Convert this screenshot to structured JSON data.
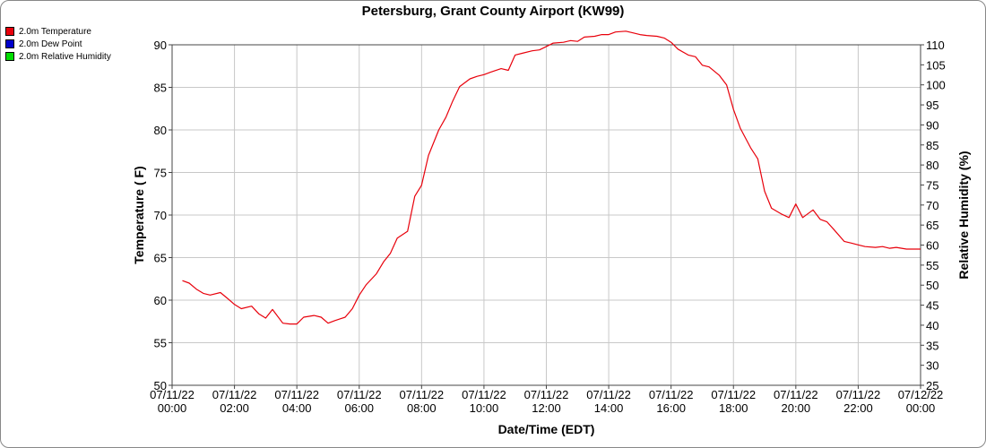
{
  "title": "Petersburg, Grant County Airport (KW99)",
  "legend": [
    {
      "label": "2.0m Temperature",
      "color": "#e8000b"
    },
    {
      "label": "2.0m Dew Point",
      "color": "#0000cc"
    },
    {
      "label": "2.0m Relative Humidity",
      "color": "#00dd00"
    }
  ],
  "chart_data": {
    "type": "line",
    "title": "Petersburg, Grant County Airport (KW99)",
    "xlabel": "Date/Time (EDT)",
    "ylabel": "Temperature ( F)",
    "y2label": "Relative Humidity (%)",
    "x_range_hours": [
      0,
      24
    ],
    "ylim": [
      50,
      90
    ],
    "y2lim": [
      25,
      110
    ],
    "yticks": [
      50,
      55,
      60,
      65,
      70,
      75,
      80,
      85,
      90
    ],
    "y2ticks": [
      25,
      30,
      35,
      40,
      45,
      50,
      55,
      60,
      65,
      70,
      75,
      80,
      85,
      90,
      95,
      100,
      105,
      110
    ],
    "xticks": [
      {
        "hour": 0,
        "date": "07/11/22",
        "time": "00:00"
      },
      {
        "hour": 2,
        "date": "07/11/22",
        "time": "02:00"
      },
      {
        "hour": 4,
        "date": "07/11/22",
        "time": "04:00"
      },
      {
        "hour": 6,
        "date": "07/11/22",
        "time": "06:00"
      },
      {
        "hour": 8,
        "date": "07/11/22",
        "time": "08:00"
      },
      {
        "hour": 10,
        "date": "07/11/22",
        "time": "10:00"
      },
      {
        "hour": 12,
        "date": "07/11/22",
        "time": "12:00"
      },
      {
        "hour": 14,
        "date": "07/11/22",
        "time": "14:00"
      },
      {
        "hour": 16,
        "date": "07/11/22",
        "time": "16:00"
      },
      {
        "hour": 18,
        "date": "07/11/22",
        "time": "18:00"
      },
      {
        "hour": 20,
        "date": "07/11/22",
        "time": "20:00"
      },
      {
        "hour": 22,
        "date": "07/11/22",
        "time": "22:00"
      },
      {
        "hour": 24,
        "date": "07/12/22",
        "time": "00:00"
      }
    ],
    "grid": true,
    "legend_position": "top-left",
    "series": [
      {
        "name": "2.0m Temperature",
        "color": "#e8000b",
        "axis": "left",
        "x": [
          0.33,
          0.55,
          0.78,
          1.0,
          1.22,
          1.55,
          1.78,
          2.0,
          2.22,
          2.55,
          2.78,
          3.0,
          3.22,
          3.55,
          3.78,
          4.0,
          4.22,
          4.55,
          4.78,
          5.0,
          5.22,
          5.55,
          5.78,
          6.0,
          6.22,
          6.55,
          6.78,
          7.0,
          7.22,
          7.55,
          7.78,
          8.0,
          8.22,
          8.55,
          8.78,
          9.0,
          9.22,
          9.55,
          9.78,
          10.0,
          10.22,
          10.55,
          10.78,
          11.0,
          11.22,
          11.55,
          11.78,
          12.0,
          12.22,
          12.55,
          12.78,
          13.0,
          13.22,
          13.55,
          13.78,
          14.0,
          14.22,
          14.55,
          14.78,
          15.0,
          15.22,
          15.55,
          15.78,
          16.0,
          16.22,
          16.55,
          16.78,
          17.0,
          17.22,
          17.55,
          17.78,
          18.0,
          18.22,
          18.55,
          18.78,
          19.0,
          19.22,
          19.55,
          19.78,
          20.0,
          20.22,
          20.55,
          20.78,
          21.0,
          21.22,
          21.55,
          21.78,
          22.0,
          22.22,
          22.55,
          22.78,
          23.0,
          23.22,
          23.55,
          23.78,
          24.0
        ],
        "values": [
          62.3,
          62.0,
          61.3,
          60.8,
          60.6,
          60.9,
          60.2,
          59.5,
          59.0,
          59.3,
          58.4,
          57.9,
          58.9,
          57.3,
          57.2,
          57.2,
          58.0,
          58.2,
          58.0,
          57.3,
          57.6,
          58.0,
          59.0,
          60.6,
          61.8,
          63.1,
          64.5,
          65.5,
          67.3,
          68.1,
          72.2,
          73.5,
          77.0,
          80.0,
          81.5,
          83.4,
          85.1,
          86.0,
          86.3,
          86.5,
          86.8,
          87.2,
          87.0,
          88.8,
          89.0,
          89.3,
          89.4,
          89.8,
          90.2,
          90.3,
          90.5,
          90.4,
          90.9,
          91.0,
          91.2,
          91.2,
          91.5,
          91.6,
          91.4,
          91.2,
          91.1,
          91.0,
          90.8,
          90.3,
          89.5,
          88.8,
          88.6,
          87.6,
          87.4,
          86.4,
          85.3,
          82.4,
          80.2,
          77.9,
          76.6,
          72.8,
          70.8,
          70.1,
          69.7,
          71.3,
          69.7,
          70.6,
          69.5,
          69.2,
          68.3,
          66.9,
          66.7,
          66.5,
          66.3,
          66.2,
          66.3,
          66.1,
          66.2,
          66.0,
          66.0,
          66.0
        ]
      }
    ]
  }
}
